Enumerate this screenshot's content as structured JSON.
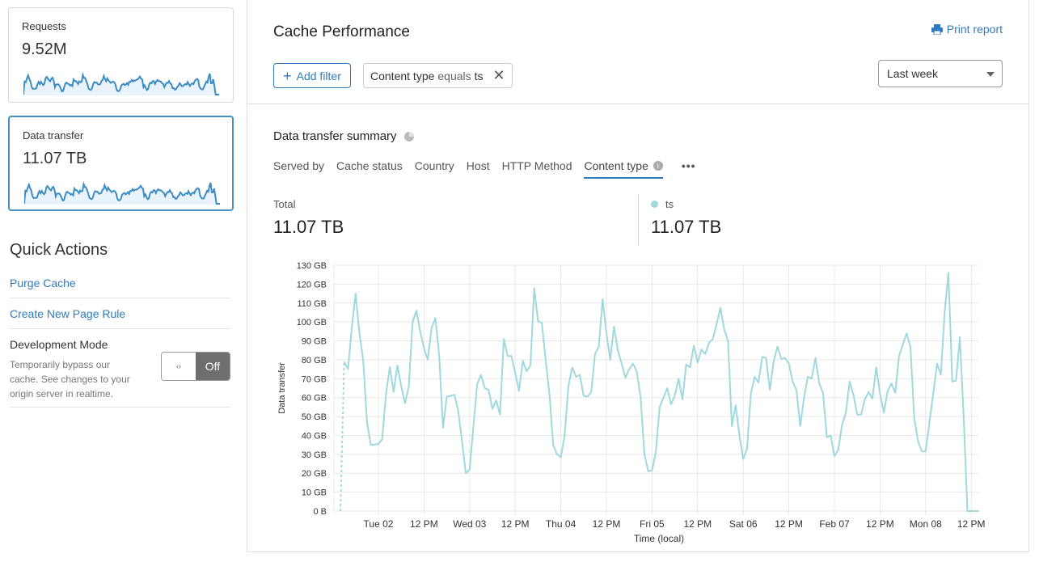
{
  "sidebar": {
    "cards": [
      {
        "label": "Requests",
        "value": "9.52M"
      },
      {
        "label": "Data transfer",
        "value": "11.07 TB"
      }
    ],
    "quick_actions": {
      "title": "Quick Actions",
      "links": [
        "Purge Cache",
        "Create New Page Rule"
      ],
      "dev_mode": {
        "title": "Development Mode",
        "description": "Temporarily bypass our cache. See changes to your origin server in realtime.",
        "toggle_icon": "‹›",
        "state": "Off"
      }
    }
  },
  "header": {
    "title": "Cache Performance",
    "print_label": "Print report",
    "add_filter_label": "Add filter",
    "filter": {
      "field": "Content type",
      "operator": "equals",
      "value": "ts"
    },
    "time_range": "Last week"
  },
  "summary": {
    "title": "Data transfer summary",
    "tabs": [
      "Served by",
      "Cache status",
      "Country",
      "Host",
      "HTTP Method",
      "Content type"
    ],
    "active_tab": "Content type",
    "more_label": "•••",
    "total_label": "Total",
    "total_value": "11.07 TB",
    "series_label": "ts",
    "series_value": "11.07 TB"
  },
  "colors": {
    "accent": "#2f7bbf",
    "series": "#9fd8de",
    "sparkline": "#3c8dc5"
  },
  "chart_data": {
    "type": "line",
    "xlabel": "Time (local)",
    "ylabel": "Data transfer",
    "ylim": [
      0,
      130
    ],
    "y_ticks": [
      "0 B",
      "10 GB",
      "20 GB",
      "30 GB",
      "40 GB",
      "50 GB",
      "60 GB",
      "70 GB",
      "80 GB",
      "90 GB",
      "100 GB",
      "110 GB",
      "120 GB",
      "130 GB"
    ],
    "x_ticks": [
      "Tue 02",
      "12 PM",
      "Wed 03",
      "12 PM",
      "Thu 04",
      "12 PM",
      "Fri 05",
      "12 PM",
      "Sat 06",
      "12 PM",
      "Feb 07",
      "12 PM",
      "Mon 08",
      "12 PM"
    ],
    "x_start": "Mon 01 14:00",
    "x_step": "1 hour",
    "grid": true,
    "series": [
      {
        "name": "ts",
        "unit": "GB",
        "values": [
          0,
          79,
          75,
          97,
          115,
          94,
          80,
          47,
          35,
          35.2,
          35.5,
          38,
          62,
          76,
          63,
          77,
          66,
          57,
          66,
          100,
          106,
          95,
          86,
          80,
          97,
          102,
          82,
          44,
          60.5,
          61,
          61.5,
          53,
          37,
          20,
          22,
          45,
          67,
          72,
          65,
          64,
          54,
          58.5,
          51,
          91,
          82,
          82,
          73,
          63.5,
          79.5,
          74,
          77,
          118,
          100.5,
          99.5,
          80,
          62,
          35,
          30,
          28.5,
          40,
          66,
          76,
          71,
          72,
          61,
          60.5,
          63,
          83,
          87,
          112,
          94,
          80,
          97.5,
          85,
          78,
          70.5,
          75,
          78,
          73.5,
          60,
          30,
          21,
          21.5,
          31,
          55,
          60,
          65,
          56.5,
          61,
          70,
          59,
          77.5,
          76,
          87.5,
          78.5,
          85.5,
          83,
          89,
          91,
          99,
          107.5,
          96,
          90,
          45,
          56,
          40,
          27.5,
          33,
          62,
          71,
          68,
          81.5,
          81,
          64,
          79,
          87,
          80.5,
          81,
          78,
          68.5,
          64,
          45,
          60,
          71,
          70,
          81,
          67.5,
          62.5,
          39,
          40,
          29,
          32.5,
          45.5,
          52,
          68.5,
          61.5,
          51,
          51,
          59,
          63,
          59.5,
          76,
          62,
          52,
          63.5,
          67.5,
          62.5,
          82,
          88,
          94,
          87,
          49,
          37,
          31.5,
          31.5,
          47,
          62,
          78,
          72,
          105,
          126,
          68.5,
          69,
          92,
          50,
          0,
          0,
          0,
          0
        ]
      }
    ]
  }
}
